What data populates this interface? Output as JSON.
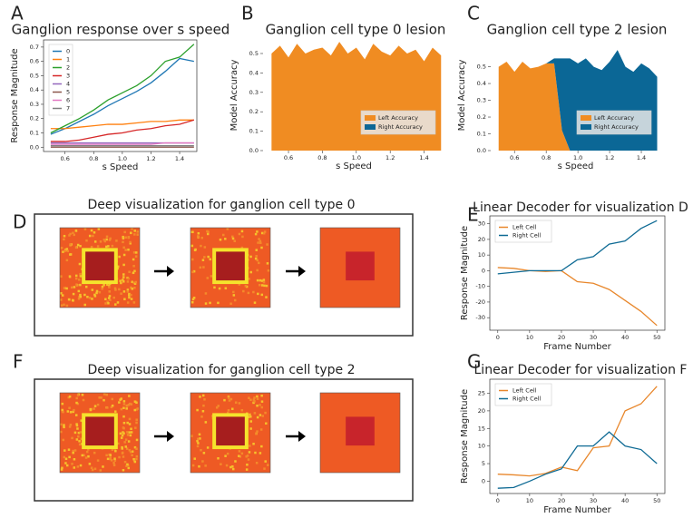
{
  "chart_data": [
    {
      "label": "A",
      "type": "line",
      "title": "Ganglion response over s speed",
      "xlabel": "s Speed",
      "ylabel": "Response Magnitude",
      "x": [
        0.5,
        0.6,
        0.7,
        0.8,
        0.9,
        1.0,
        1.1,
        1.2,
        1.3,
        1.4,
        1.5
      ],
      "xlim": [
        0.45,
        1.52
      ],
      "xticks": [
        0.6,
        0.8,
        {
          "value": 1.0,
          "label": "1.0"
        },
        1.2,
        1.4
      ],
      "ylim": [
        -0.03,
        0.75
      ],
      "yticks": [
        {
          "value": 0,
          "label": "0.0"
        },
        0.1,
        0.2,
        0.3,
        0.4,
        0.5,
        0.6,
        0.7
      ],
      "legend": "upper left",
      "series": [
        {
          "name": "0",
          "color": "#1f77b4",
          "values": [
            0.09,
            0.13,
            0.18,
            0.23,
            0.29,
            0.34,
            0.39,
            0.45,
            0.53,
            0.62,
            0.6
          ]
        },
        {
          "name": "1",
          "color": "#ff7f0e",
          "values": [
            0.13,
            0.13,
            0.14,
            0.15,
            0.16,
            0.16,
            0.17,
            0.18,
            0.18,
            0.19,
            0.19
          ]
        },
        {
          "name": "2",
          "color": "#2ca02c",
          "values": [
            0.1,
            0.15,
            0.2,
            0.26,
            0.33,
            0.38,
            0.43,
            0.5,
            0.6,
            0.63,
            0.72
          ]
        },
        {
          "name": "3",
          "color": "#d62728",
          "values": [
            0.04,
            0.04,
            0.05,
            0.07,
            0.09,
            0.1,
            0.12,
            0.13,
            0.15,
            0.16,
            0.19
          ]
        },
        {
          "name": "4",
          "color": "#9467bd",
          "values": [
            0.03,
            0.03,
            0.03,
            0.03,
            0.03,
            0.03,
            0.03,
            0.03,
            0.03,
            0.03,
            0.03
          ]
        },
        {
          "name": "5",
          "color": "#8c564b",
          "values": [
            0,
            0,
            0,
            0,
            0,
            0,
            0,
            0,
            0,
            0,
            0
          ]
        },
        {
          "name": "6",
          "color": "#e377c2",
          "values": [
            0.02,
            0.02,
            0.02,
            0.02,
            0.02,
            0.02,
            0.02,
            0.02,
            0.03,
            0.03,
            0.03
          ]
        },
        {
          "name": "7",
          "color": "#7f7f7f",
          "values": [
            0.01,
            0.01,
            0.01,
            0.01,
            0.01,
            0.01,
            0.01,
            0.01,
            0.01,
            0.01,
            0.01
          ]
        }
      ]
    },
    {
      "label": "B",
      "type": "area",
      "title": "Ganglion cell type 0 lesion",
      "xlabel": "s Speed",
      "ylabel": "Model Accuracy",
      "x": [
        0.5,
        0.55,
        0.6,
        0.65,
        0.7,
        0.75,
        0.8,
        0.85,
        0.9,
        0.95,
        1.0,
        1.05,
        1.1,
        1.15,
        1.2,
        1.25,
        1.3,
        1.35,
        1.4,
        1.45,
        1.5
      ],
      "xlim": [
        0.45,
        1.52
      ],
      "xticks": [
        0.6,
        0.8,
        {
          "value": 1.0,
          "label": "1.0"
        },
        1.2,
        1.4
      ],
      "ylim": [
        0,
        0.57
      ],
      "yticks": [
        {
          "value": 0,
          "label": "0.0"
        },
        0.1,
        0.2,
        0.3,
        0.4,
        0.5
      ],
      "legend": "lower right",
      "series": [
        {
          "name": "Left Accuracy",
          "color": "#f08c22",
          "values": [
            0.5,
            0.54,
            0.48,
            0.55,
            0.5,
            0.52,
            0.53,
            0.49,
            0.56,
            0.5,
            0.53,
            0.47,
            0.55,
            0.51,
            0.49,
            0.54,
            0.5,
            0.52,
            0.46,
            0.53,
            0.49
          ]
        },
        {
          "name": "Right Accuracy",
          "color": "#0b6796",
          "values": [
            0,
            0,
            0,
            0,
            0,
            0,
            0,
            0,
            0,
            0,
            0,
            0,
            0,
            0,
            0,
            0,
            0,
            0,
            0,
            0,
            0
          ]
        }
      ]
    },
    {
      "label": "C",
      "type": "area",
      "title": "Ganglion cell type 2 lesion",
      "xlabel": "s Speed",
      "ylabel": "Model Accuracy",
      "x": [
        0.5,
        0.55,
        0.6,
        0.65,
        0.7,
        0.75,
        0.8,
        0.85,
        0.9,
        0.95,
        1.0,
        1.05,
        1.1,
        1.15,
        1.2,
        1.25,
        1.3,
        1.35,
        1.4,
        1.45,
        1.5
      ],
      "xlim": [
        0.45,
        1.52
      ],
      "xticks": [
        0.6,
        0.8,
        {
          "value": 1.0,
          "label": "1.0"
        },
        1.2,
        1.4
      ],
      "ylim": [
        0,
        0.66
      ],
      "yticks": [
        {
          "value": 0,
          "label": "0.0"
        },
        0.1,
        0.2,
        0.3,
        0.4,
        0.5
      ],
      "legend": "lower right",
      "series": [
        {
          "name": "Left Accuracy",
          "color": "#f08c22",
          "values": [
            0.5,
            0.53,
            0.47,
            0.53,
            0.49,
            0.5,
            0.52,
            0.52,
            0.12,
            0,
            0,
            0,
            0,
            0,
            0,
            0,
            0,
            0,
            0,
            0,
            0
          ]
        },
        {
          "name": "Right Accuracy",
          "color": "#0b6796",
          "values": [
            0,
            0,
            0,
            0,
            0,
            0,
            0,
            0.03,
            0.43,
            0.55,
            0.52,
            0.55,
            0.5,
            0.48,
            0.53,
            0.6,
            0.5,
            0.47,
            0.52,
            0.49,
            0.44
          ]
        }
      ]
    },
    {
      "label": "D",
      "type": "image",
      "title": "Deep visualization for ganglion cell type 0"
    },
    {
      "label": "E",
      "type": "line",
      "title": "Linear Decoder for visualization D",
      "xlabel": "Frame Number",
      "ylabel": "Response Magnitude",
      "x": [
        0,
        5,
        10,
        15,
        20,
        25,
        30,
        35,
        40,
        45,
        50
      ],
      "xlim": [
        -2.5,
        52.5
      ],
      "xticks": [
        0,
        10,
        20,
        30,
        40,
        50
      ],
      "ylim": [
        -38,
        35
      ],
      "yticks": [
        -30,
        -20,
        -10,
        0,
        10,
        20,
        30
      ],
      "legend": "upper left",
      "series": [
        {
          "name": "Left Cell",
          "color": "#e8872c",
          "values": [
            2,
            1.5,
            0,
            -0.5,
            0,
            -7,
            -8,
            -12,
            -19,
            -26,
            -35
          ]
        },
        {
          "name": "Right Cell",
          "color": "#0e6a94",
          "values": [
            -2,
            -1,
            0,
            0,
            0,
            7,
            9,
            17,
            19,
            27,
            32
          ]
        }
      ]
    },
    {
      "label": "F",
      "type": "image",
      "title": "Deep visualization for ganglion cell type 2"
    },
    {
      "label": "G",
      "type": "line",
      "title": "Linear Decoder for visualization F",
      "xlabel": "Frame Number",
      "ylabel": "Response Magnitude",
      "x": [
        0,
        5,
        10,
        15,
        20,
        25,
        30,
        35,
        40,
        45,
        50
      ],
      "xlim": [
        -2.5,
        52.5
      ],
      "xticks": [
        0,
        10,
        20,
        30,
        40,
        50
      ],
      "ylim": [
        -3.5,
        29
      ],
      "yticks": [
        0,
        5,
        10,
        15,
        20,
        25
      ],
      "legend": "upper left",
      "series": [
        {
          "name": "Left Cell",
          "color": "#e8872c",
          "values": [
            2,
            1.8,
            1.5,
            2.2,
            4,
            3,
            9.5,
            10,
            20,
            22,
            27
          ]
        },
        {
          "name": "Right Cell",
          "color": "#0e6a94",
          "values": [
            -2,
            -1.8,
            0,
            2,
            3.5,
            10,
            10,
            14,
            10,
            9,
            5
          ]
        }
      ]
    }
  ]
}
